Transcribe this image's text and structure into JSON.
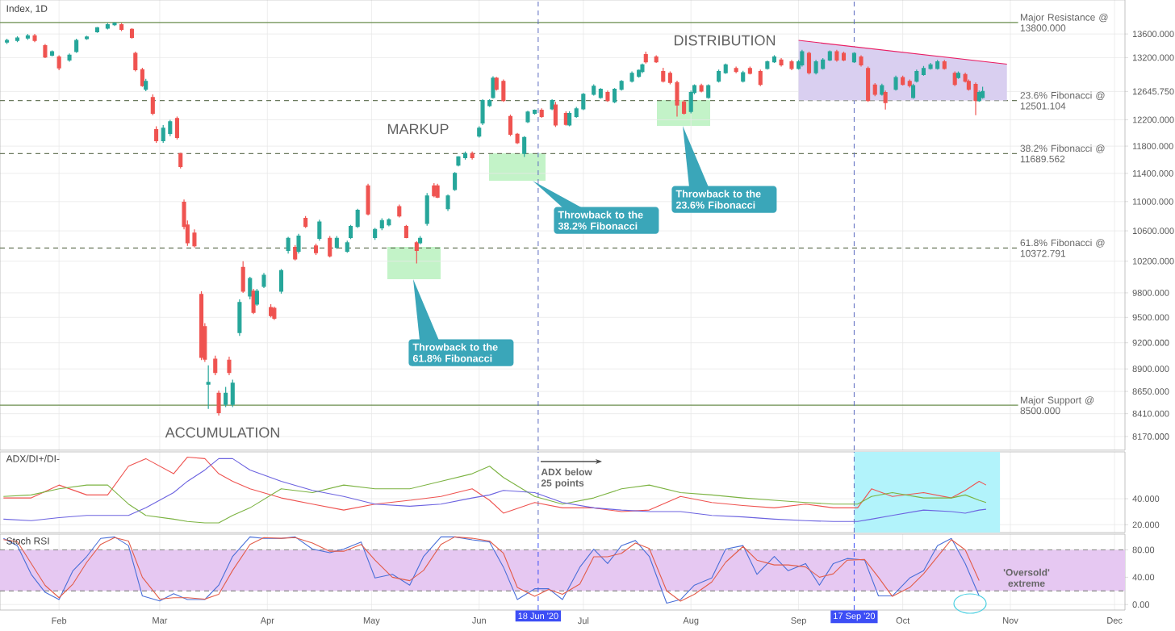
{
  "chart_data": [
    {
      "type": "candlestick",
      "title": "Index, 1D",
      "log": true,
      "grid": true,
      "tick_labels": "y",
      "xlim": [
        "2020-01-15",
        "2020-12-04"
      ],
      "xticks": [
        {
          "value": "2020-02-01",
          "label": null
        },
        {
          "value": "2020-03-01",
          "label": null
        },
        {
          "value": "2020-04-01",
          "label": null
        },
        {
          "value": "2020-05-01",
          "label": null
        },
        {
          "value": "2020-06-01",
          "label": null
        },
        {
          "value": "2020-07-01",
          "label": null
        },
        {
          "value": "2020-08-01",
          "label": null
        },
        {
          "value": "2020-09-01",
          "label": null
        },
        {
          "value": "2020-10-01",
          "label": null
        },
        {
          "value": "2020-11-01",
          "label": null
        },
        {
          "value": "2020-12-01",
          "label": null
        }
      ],
      "ylim": [
        8030,
        14200
      ],
      "yticks": [
        {
          "value": 8170,
          "label": "8170.000"
        },
        {
          "value": 8410,
          "label": "8410.000"
        },
        {
          "value": 8650,
          "label": "8650.000"
        },
        {
          "value": 8900,
          "label": "8900.000"
        },
        {
          "value": 9200,
          "label": "9200.000"
        },
        {
          "value": 9500,
          "label": "9500.000"
        },
        {
          "value": 9800,
          "label": "9800.000"
        },
        {
          "value": 10200,
          "label": "10200.000"
        },
        {
          "value": 10600,
          "label": "10600.000"
        },
        {
          "value": 11000,
          "label": "11000.000"
        },
        {
          "value": 11400,
          "label": "11400.000"
        },
        {
          "value": 11800,
          "label": "11800.000"
        },
        {
          "value": 12200,
          "label": "12200.000"
        },
        {
          "value": 12645.75,
          "label": "12645.750"
        },
        {
          "value": 13200,
          "label": "13200.000"
        },
        {
          "value": 13600,
          "label": "13600.000"
        }
      ],
      "x": [
        "2020-01-17",
        "2020-01-20",
        "2020-01-23",
        "2020-01-25",
        "2020-01-28",
        "2020-01-30",
        "2020-02-01",
        "2020-02-04",
        "2020-02-06",
        "2020-02-09",
        "2020-02-12",
        "2020-02-15",
        "2020-02-17",
        "2020-02-19",
        "2020-02-22",
        "2020-02-23",
        "2020-02-25",
        "2020-02-26",
        "2020-02-28",
        "2020-02-29",
        "2020-03-02",
        "2020-03-04",
        "2020-03-06",
        "2020-03-07",
        "2020-03-08",
        "2020-03-09",
        "2020-03-11",
        "2020-03-13",
        "2020-03-14",
        "2020-03-15",
        "2020-03-17",
        "2020-03-18",
        "2020-03-20",
        "2020-03-21",
        "2020-03-22",
        "2020-03-24",
        "2020-03-25",
        "2020-03-27",
        "2020-03-28",
        "2020-03-29",
        "2020-03-31",
        "2020-04-02",
        "2020-04-03",
        "2020-04-05",
        "2020-04-07",
        "2020-04-09",
        "2020-04-10",
        "2020-04-12",
        "2020-04-15",
        "2020-04-16",
        "2020-04-19",
        "2020-04-21",
        "2020-04-24",
        "2020-04-25",
        "2020-04-27",
        "2020-04-30",
        "2020-05-02",
        "2020-05-04",
        "2020-05-06",
        "2020-05-09",
        "2020-05-11",
        "2020-05-14",
        "2020-05-15",
        "2020-05-17",
        "2020-05-19",
        "2020-05-20",
        "2020-05-23",
        "2020-05-25",
        "2020-05-26",
        "2020-05-28",
        "2020-05-30",
        "2020-06-01",
        "2020-06-02",
        "2020-06-04",
        "2020-06-05",
        "2020-06-06",
        "2020-06-08",
        "2020-06-10",
        "2020-06-12",
        "2020-06-14",
        "2020-06-15",
        "2020-06-17",
        "2020-06-19",
        "2020-06-22",
        "2020-06-23",
        "2020-06-26",
        "2020-06-27",
        "2020-06-29",
        "2020-07-01",
        "2020-07-04",
        "2020-07-06",
        "2020-07-08",
        "2020-07-10",
        "2020-07-12",
        "2020-07-15",
        "2020-07-17",
        "2020-07-18",
        "2020-07-19",
        "2020-07-22",
        "2020-07-24",
        "2020-07-26",
        "2020-07-28",
        "2020-07-30",
        "2020-08-01",
        "2020-08-02",
        "2020-08-04",
        "2020-08-06",
        "2020-08-09",
        "2020-08-11",
        "2020-08-14",
        "2020-08-16",
        "2020-08-18",
        "2020-08-21",
        "2020-08-23",
        "2020-08-25",
        "2020-08-27",
        "2020-08-30",
        "2020-09-01",
        "2020-09-02",
        "2020-09-04",
        "2020-09-06",
        "2020-09-08",
        "2020-09-10",
        "2020-09-12",
        "2020-09-14",
        "2020-09-17",
        "2020-09-19",
        "2020-09-21",
        "2020-09-23",
        "2020-09-25",
        "2020-09-26",
        "2020-09-29",
        "2020-10-01",
        "2020-10-03",
        "2020-10-04",
        "2020-10-05",
        "2020-10-07",
        "2020-10-09",
        "2020-10-11",
        "2020-10-13",
        "2020-10-16",
        "2020-10-17",
        "2020-10-19",
        "2020-10-20",
        "2020-10-22",
        "2020-10-23",
        "2020-10-24"
      ],
      "ohlc": [
        [
          13460,
          13520,
          13430,
          13490
        ],
        [
          13490,
          13560,
          13460,
          13530
        ],
        [
          13530,
          13600,
          13500,
          13570
        ],
        [
          13570,
          13600,
          13460,
          13490
        ],
        [
          13400,
          13430,
          13190,
          13210
        ],
        [
          13240,
          13320,
          13220,
          13300
        ],
        [
          13210,
          13240,
          12990,
          13030
        ],
        [
          13160,
          13270,
          13130,
          13240
        ],
        [
          13300,
          13520,
          13280,
          13490
        ],
        [
          13520,
          13570,
          13500,
          13550
        ],
        [
          13640,
          13720,
          13620,
          13710
        ],
        [
          13700,
          13790,
          13680,
          13760
        ],
        [
          13760,
          13800,
          13740,
          13790
        ],
        [
          13760,
          13790,
          13650,
          13680
        ],
        [
          13680,
          13700,
          13520,
          13540
        ],
        [
          13270,
          13300,
          12970,
          13000
        ],
        [
          13000,
          13030,
          12720,
          12740
        ],
        [
          12680,
          12850,
          12650,
          12810
        ],
        [
          12550,
          12600,
          12270,
          12300
        ],
        [
          12050,
          12100,
          11850,
          11880
        ],
        [
          11880,
          12120,
          11850,
          12070
        ],
        [
          11990,
          12200,
          11950,
          12170
        ],
        [
          12220,
          12250,
          11900,
          11930
        ],
        [
          11690,
          11700,
          11470,
          11500
        ],
        [
          10990,
          11030,
          10620,
          10660
        ],
        [
          10680,
          10740,
          10400,
          10440
        ],
        [
          10570,
          10620,
          10380,
          10400
        ],
        [
          9780,
          9820,
          9000,
          9030
        ],
        [
          9390,
          9430,
          8980,
          9010
        ],
        [
          8730,
          8940,
          8460,
          8750
        ],
        [
          9010,
          9050,
          8830,
          8860
        ],
        [
          8630,
          8660,
          8390,
          8420
        ],
        [
          8510,
          8700,
          8480,
          8630
        ],
        [
          9000,
          9040,
          8830,
          8860
        ],
        [
          8510,
          8780,
          8480,
          8740
        ],
        [
          9320,
          9720,
          9280,
          9680
        ],
        [
          10120,
          10200,
          9800,
          9820
        ],
        [
          9760,
          10000,
          9720,
          9980
        ],
        [
          9820,
          9850,
          9540,
          9560
        ],
        [
          9660,
          9850,
          9640,
          9820
        ],
        [
          9880,
          10050,
          9860,
          10020
        ],
        [
          9620,
          9660,
          9500,
          9520
        ],
        [
          9610,
          9630,
          9470,
          9490
        ],
        [
          9820,
          10100,
          9790,
          10080
        ],
        [
          10340,
          10520,
          10300,
          10500
        ],
        [
          10380,
          10410,
          10210,
          10230
        ],
        [
          10330,
          10560,
          10300,
          10530
        ],
        [
          10770,
          10800,
          10640,
          10660
        ],
        [
          10400,
          10430,
          10280,
          10310
        ],
        [
          10500,
          10750,
          10470,
          10720
        ],
        [
          10500,
          10530,
          10250,
          10270
        ],
        [
          10380,
          10530,
          10360,
          10500
        ],
        [
          10330,
          10470,
          10310,
          10440
        ],
        [
          10510,
          10680,
          10490,
          10660
        ],
        [
          10660,
          10900,
          10640,
          10880
        ],
        [
          11220,
          11250,
          10810,
          10830
        ],
        [
          10510,
          10640,
          10480,
          10620
        ],
        [
          10640,
          10770,
          10610,
          10740
        ],
        [
          10680,
          10770,
          10660,
          10750
        ],
        [
          10930,
          10960,
          10780,
          10800
        ],
        [
          10660,
          10680,
          10500,
          10510
        ],
        [
          10440,
          10460,
          10170,
          10340
        ],
        [
          10440,
          10530,
          10420,
          10500
        ],
        [
          10700,
          11120,
          10670,
          11080
        ],
        [
          11220,
          11260,
          11060,
          11080
        ],
        [
          11220,
          11250,
          11050,
          11060
        ],
        [
          10900,
          11100,
          10870,
          11080
        ],
        [
          11170,
          11420,
          11150,
          11400
        ],
        [
          11520,
          11650,
          11500,
          11640
        ],
        [
          11630,
          11720,
          11600,
          11690
        ],
        [
          11690,
          11720,
          11600,
          11630
        ],
        [
          11950,
          12100,
          11930,
          12070
        ],
        [
          12150,
          12520,
          12120,
          12500
        ],
        [
          12420,
          12520,
          12400,
          12500
        ],
        [
          12550,
          12890,
          12530,
          12860
        ],
        [
          12860,
          12880,
          12660,
          12680
        ],
        [
          12810,
          12840,
          12480,
          12500
        ],
        [
          12250,
          12280,
          11950,
          11980
        ],
        [
          11980,
          12000,
          11830,
          11850
        ],
        [
          11690,
          11950,
          11640,
          11930
        ],
        [
          12170,
          12340,
          12150,
          12320
        ],
        [
          12300,
          12360,
          12280,
          12350
        ],
        [
          12350,
          12380,
          12230,
          12250
        ],
        [
          12370,
          12520,
          12350,
          12500
        ],
        [
          12430,
          12480,
          12090,
          12120
        ],
        [
          12300,
          12330,
          12110,
          12130
        ],
        [
          12120,
          12330,
          12100,
          12300
        ],
        [
          12250,
          12400,
          12230,
          12370
        ],
        [
          12370,
          12620,
          12350,
          12600
        ],
        [
          12600,
          12760,
          12580,
          12730
        ],
        [
          12550,
          12700,
          12530,
          12680
        ],
        [
          12630,
          12660,
          12480,
          12500
        ],
        [
          12480,
          12700,
          12460,
          12680
        ],
        [
          12680,
          12830,
          12660,
          12810
        ],
        [
          12810,
          12970,
          12790,
          12940
        ],
        [
          12890,
          13000,
          12870,
          12990
        ],
        [
          12970,
          13100,
          12940,
          13080
        ],
        [
          13250,
          13300,
          13100,
          13130
        ],
        [
          13210,
          13240,
          13110,
          13130
        ],
        [
          12970,
          13030,
          12790,
          12810
        ],
        [
          12940,
          12970,
          12760,
          12790
        ],
        [
          12790,
          12820,
          12250,
          12430
        ],
        [
          12480,
          12510,
          12280,
          12300
        ],
        [
          12330,
          12660,
          12300,
          12630
        ],
        [
          12630,
          12760,
          12600,
          12740
        ],
        [
          12740,
          12770,
          12630,
          12650
        ],
        [
          12550,
          12760,
          12530,
          12740
        ],
        [
          12810,
          13000,
          12790,
          12970
        ],
        [
          12950,
          13100,
          12930,
          13080
        ],
        [
          13020,
          13050,
          12940,
          12970
        ],
        [
          12810,
          12980,
          12790,
          12950
        ],
        [
          13020,
          13050,
          12920,
          12940
        ],
        [
          12970,
          13000,
          12730,
          12760
        ],
        [
          13020,
          13150,
          13000,
          13130
        ],
        [
          13130,
          13240,
          13110,
          13210
        ],
        [
          13160,
          13190,
          13050,
          13080
        ],
        [
          13130,
          13160,
          12990,
          13020
        ],
        [
          13020,
          13160,
          13000,
          13130
        ],
        [
          13080,
          13330,
          13050,
          13300
        ],
        [
          13270,
          13300,
          12920,
          12950
        ],
        [
          12950,
          13160,
          12920,
          13130
        ],
        [
          13020,
          13190,
          13000,
          13160
        ],
        [
          13160,
          13320,
          13140,
          13300
        ],
        [
          13300,
          13330,
          13130,
          13160
        ],
        [
          13270,
          13300,
          13140,
          13160
        ],
        [
          13130,
          13290,
          13110,
          13270
        ],
        [
          13210,
          13240,
          13050,
          13080
        ],
        [
          13020,
          13050,
          12480,
          12500
        ],
        [
          12750,
          12780,
          12570,
          12600
        ],
        [
          12600,
          12770,
          12580,
          12740
        ],
        [
          12630,
          12660,
          12360,
          12470
        ],
        [
          12680,
          12900,
          12660,
          12870
        ],
        [
          12870,
          12900,
          12740,
          12760
        ],
        [
          12810,
          12840,
          12710,
          12740
        ],
        [
          12550,
          12770,
          12530,
          12740
        ],
        [
          12810,
          13000,
          12790,
          12970
        ],
        [
          12920,
          13060,
          12900,
          13020
        ],
        [
          13020,
          13110,
          13000,
          13080
        ],
        [
          13020,
          13160,
          13000,
          13130
        ],
        [
          13130,
          13160,
          13000,
          13020
        ],
        [
          12940,
          12970,
          12730,
          12760
        ],
        [
          12870,
          12970,
          12850,
          12940
        ],
        [
          12920,
          12950,
          12790,
          12810
        ],
        [
          12810,
          12840,
          12660,
          12680
        ],
        [
          12760,
          12790,
          12270,
          12500
        ],
        [
          12500,
          12660,
          12480,
          12630
        ],
        [
          12550,
          12720,
          12530,
          12645.75
        ]
      ],
      "series": [
        {
          "type": "line",
          "color": "#e91e63",
          "x": [
            "2020-09-01",
            "2020-10-31"
          ],
          "values": [
            13490,
            13090
          ],
          "upper": [
            13490,
            13090
          ],
          "lower": [
            12501.104,
            12501.104
          ]
        }
      ],
      "ref_lines": [
        {
          "axis": "y",
          "value": 13800,
          "label": "Major Resistance @ 13800.000",
          "color": "#6b8e4e",
          "line_style": "solid"
        },
        {
          "axis": "y",
          "value": 12501.104,
          "label": "23.6% Fibonacci @ 12501.104",
          "color": "#6b7a5e",
          "line_style": "dashed"
        },
        {
          "axis": "y",
          "value": 11689.562,
          "label": "38.2% Fibonacci @ 11689.562",
          "color": "#6b7a5e",
          "line_style": "dashed"
        },
        {
          "axis": "y",
          "value": 10372.791,
          "label": "61.8% Fibonacci @ 10372.791",
          "color": "#6b7a5e",
          "line_style": "dashed"
        },
        {
          "axis": "y",
          "value": 8500,
          "label": "Major Support @ 8500.000",
          "color": "#6b8e4e",
          "line_style": "solid"
        },
        {
          "axis": "x",
          "value": "2020-06-18",
          "color": "#5c6bc0",
          "line_style": "dashed"
        },
        {
          "axis": "x",
          "value": "2020-09-17",
          "color": "#5c6bc0",
          "line_style": "dashed"
        }
      ],
      "annotations": [
        "MARKUP",
        "DISTRIBUTION",
        "ACCUMULATION",
        "Throwback to the 61.8% Fibonacci",
        "Throwback to the 38.2% Fibonacci",
        "Throwback to the 23.6% Fibonacci"
      ]
    },
    {
      "type": "line",
      "title": "ADX/DI+/DI-",
      "grid": true,
      "tick_labels": "y",
      "xlim": [
        "2020-01-15",
        "2020-12-04"
      ],
      "xticks": [
        {
          "value": "2020-02-01",
          "label": null
        },
        {
          "value": "2020-03-01",
          "label": null
        },
        {
          "value": "2020-04-01",
          "label": null
        },
        {
          "value": "2020-05-01",
          "label": null
        },
        {
          "value": "2020-06-01",
          "label": null
        },
        {
          "value": "2020-07-01",
          "label": null
        },
        {
          "value": "2020-08-01",
          "label": null
        },
        {
          "value": "2020-09-01",
          "label": null
        },
        {
          "value": "2020-10-01",
          "label": null
        },
        {
          "value": "2020-11-01",
          "label": null
        },
        {
          "value": "2020-12-01",
          "label": null
        }
      ],
      "ylim": [
        14,
        76
      ],
      "yticks": [
        {
          "value": 20,
          "label": "20.000"
        },
        {
          "value": 40,
          "label": "40.000"
        }
      ],
      "x": [
        "2020-01-16",
        "2020-01-24",
        "2020-02-01",
        "2020-02-09",
        "2020-02-15",
        "2020-02-21",
        "2020-02-26",
        "2020-03-05",
        "2020-03-09",
        "2020-03-14",
        "2020-03-18",
        "2020-03-22",
        "2020-03-27",
        "2020-04-05",
        "2020-04-14",
        "2020-04-23",
        "2020-05-02",
        "2020-05-12",
        "2020-05-21",
        "2020-05-30",
        "2020-06-04",
        "2020-06-08",
        "2020-06-17",
        "2020-06-25",
        "2020-07-04",
        "2020-07-12",
        "2020-07-20",
        "2020-07-29",
        "2020-08-07",
        "2020-08-16",
        "2020-08-25",
        "2020-09-03",
        "2020-09-11",
        "2020-09-18",
        "2020-09-22",
        "2020-09-28",
        "2020-10-07",
        "2020-10-15",
        "2020-10-19",
        "2020-10-23",
        "2020-10-25"
      ],
      "series": [
        {
          "color": "#ef5350",
          "values": [
            40.6,
            40.6,
            50.5,
            42.9,
            42.9,
            65.0,
            70.8,
            59.2,
            72.0,
            70.8,
            59.2,
            53.4,
            47.6,
            40.6,
            35.9,
            31.3,
            35.9,
            38.8,
            41.7,
            47.6,
            38.8,
            28.9,
            37.1,
            33.0,
            33.0,
            30.1,
            31.3,
            41.7,
            37.1,
            34.8,
            33.0,
            35.9,
            33.0,
            33.0,
            47.6,
            41.7,
            44.7,
            40.6,
            46.4,
            53.4,
            50.5
          ]
        },
        {
          "color": "#7cb342",
          "values": [
            41.7,
            42.9,
            47.6,
            50.5,
            50.5,
            35.9,
            27.2,
            24.3,
            22.5,
            21.4,
            21.4,
            27.2,
            33.0,
            47.6,
            44.7,
            50.5,
            47.6,
            47.6,
            53.4,
            59.2,
            65.0,
            56.3,
            41.7,
            35.9,
            40.6,
            47.6,
            50.5,
            44.7,
            42.9,
            40.6,
            38.8,
            37.1,
            35.9,
            35.9,
            41.7,
            44.7,
            40.6,
            40.6,
            42.9,
            38.8,
            37.1
          ]
        },
        {
          "color": "#6c63e0",
          "values": [
            24.3,
            23.1,
            25.5,
            27.2,
            27.2,
            27.2,
            33.0,
            44.7,
            53.4,
            62.1,
            70.8,
            70.8,
            62.1,
            53.4,
            46.4,
            41.7,
            35.9,
            34.2,
            35.9,
            40.6,
            42.9,
            46.4,
            44.7,
            37.1,
            33.0,
            31.3,
            30.1,
            30.1,
            27.2,
            26.0,
            24.3,
            23.1,
            22.5,
            22.5,
            24.3,
            27.2,
            31.3,
            30.1,
            28.9,
            31.3,
            31.9
          ]
        }
      ],
      "bands": [
        {
          "axis": "x",
          "from": "2020-09-17",
          "to": "2020-10-29",
          "color": "#b2f3fb"
        }
      ],
      "ref_lines": [
        {
          "axis": "x",
          "value": "2020-06-18",
          "color": "#5c6bc0",
          "line_style": "dashed"
        },
        {
          "axis": "x",
          "value": "2020-09-17",
          "color": "#5c6bc0",
          "line_style": "dashed"
        }
      ],
      "annotations": [
        "ADX below 25 points"
      ]
    },
    {
      "type": "line",
      "title": "Stoch RSI",
      "grid": true,
      "xlim": [
        "2020-01-15",
        "2020-12-04"
      ],
      "xticks": [
        {
          "value": "2020-02-01",
          "label": "Feb"
        },
        {
          "value": "2020-03-01",
          "label": "Mar"
        },
        {
          "value": "2020-04-01",
          "label": "Apr"
        },
        {
          "value": "2020-05-01",
          "label": "May"
        },
        {
          "value": "2020-06-01",
          "label": "Jun"
        },
        {
          "value": "2020-07-01",
          "label": "Jul"
        },
        {
          "value": "2020-08-01",
          "label": "Aug"
        },
        {
          "value": "2020-09-01",
          "label": "Sep"
        },
        {
          "value": "2020-10-01",
          "label": "Oct"
        },
        {
          "value": "2020-11-01",
          "label": "Nov"
        },
        {
          "value": "2020-12-01",
          "label": "Dec"
        }
      ],
      "ylim": [
        -8,
        103
      ],
      "yticks": [
        {
          "value": 0,
          "label": "0.00"
        },
        {
          "value": 40,
          "label": "40.00"
        },
        {
          "value": 80,
          "label": "80.00"
        }
      ],
      "x": [
        "2020-01-16",
        "2020-01-20",
        "2020-01-24",
        "2020-01-28",
        "2020-02-01",
        "2020-02-05",
        "2020-02-09",
        "2020-02-13",
        "2020-02-17",
        "2020-02-21",
        "2020-02-25",
        "2020-03-01",
        "2020-03-05",
        "2020-03-09",
        "2020-03-14",
        "2020-03-18",
        "2020-03-22",
        "2020-03-27",
        "2020-03-31",
        "2020-04-05",
        "2020-04-09",
        "2020-04-14",
        "2020-04-19",
        "2020-04-23",
        "2020-04-28",
        "2020-05-02",
        "2020-05-07",
        "2020-05-12",
        "2020-05-16",
        "2020-05-21",
        "2020-05-25",
        "2020-05-30",
        "2020-06-04",
        "2020-06-08",
        "2020-06-12",
        "2020-06-17",
        "2020-06-21",
        "2020-06-25",
        "2020-06-30",
        "2020-07-04",
        "2020-07-08",
        "2020-07-12",
        "2020-07-16",
        "2020-07-20",
        "2020-07-25",
        "2020-07-29",
        "2020-08-02",
        "2020-08-07",
        "2020-08-11",
        "2020-08-16",
        "2020-08-20",
        "2020-08-25",
        "2020-08-29",
        "2020-09-03",
        "2020-09-07",
        "2020-09-11",
        "2020-09-15",
        "2020-09-20",
        "2020-09-24",
        "2020-09-28",
        "2020-10-03",
        "2020-10-07",
        "2020-10-11",
        "2020-10-15",
        "2020-10-19",
        "2020-10-23"
      ],
      "series": [
        {
          "color": "#4a6fd8",
          "values": [
            96.8,
            86.3,
            44.2,
            17.9,
            7.3,
            49.5,
            70.5,
            96.8,
            99.0,
            86.3,
            12.6,
            5.2,
            15.8,
            7.3,
            7.3,
            28.4,
            70.5,
            99.0,
            96.8,
            96.8,
            99.0,
            81.1,
            75.8,
            81.1,
            91.6,
            38.9,
            44.2,
            28.4,
            70.5,
            99.0,
            99.0,
            94.7,
            91.6,
            54.7,
            7.3,
            23.1,
            23.1,
            7.3,
            54.7,
            81.1,
            60.0,
            86.3,
            93.7,
            70.5,
            2.1,
            7.3,
            28.4,
            38.9,
            81.1,
            86.3,
            44.2,
            70.5,
            49.5,
            60.0,
            28.4,
            60.0,
            67.4,
            65.3,
            12.6,
            12.6,
            38.9,
            49.5,
            86.3,
            96.8,
            60.0,
            12.6
          ]
        },
        {
          "color": "#e35d4a",
          "values": [
            95,
            92,
            60,
            28,
            10,
            30,
            62,
            88,
            98,
            93,
            40,
            8,
            10,
            10,
            8,
            15,
            50,
            88,
            98,
            97,
            98,
            90,
            78,
            78,
            88,
            65,
            40,
            35,
            50,
            88,
            99,
            97,
            93,
            75,
            25,
            12,
            22,
            15,
            30,
            70,
            70,
            75,
            90,
            82,
            20,
            5,
            15,
            33,
            62,
            85,
            65,
            58,
            58,
            55,
            40,
            45,
            65,
            66,
            40,
            12,
            25,
            45,
            70,
            95,
            80,
            35
          ]
        }
      ],
      "bands": [
        {
          "axis": "y",
          "from": 20,
          "to": 80,
          "color": "#e6c8f2"
        }
      ],
      "ref_lines": [
        {
          "axis": "y",
          "value": 80,
          "color": "#8c8c8c",
          "line_style": "dashed"
        },
        {
          "axis": "y",
          "value": 20,
          "color": "#8c8c8c",
          "line_style": "dashed"
        },
        {
          "axis": "x",
          "value": "2020-06-18",
          "label": "18 Jun '20",
          "color": "#3d4ef5",
          "line_style": "dashed"
        },
        {
          "axis": "x",
          "value": "2020-09-17",
          "label": "17 Sep '20",
          "color": "#3d4ef5",
          "line_style": "dashed"
        }
      ],
      "annotations": [
        "'Oversold' extreme"
      ]
    }
  ]
}
